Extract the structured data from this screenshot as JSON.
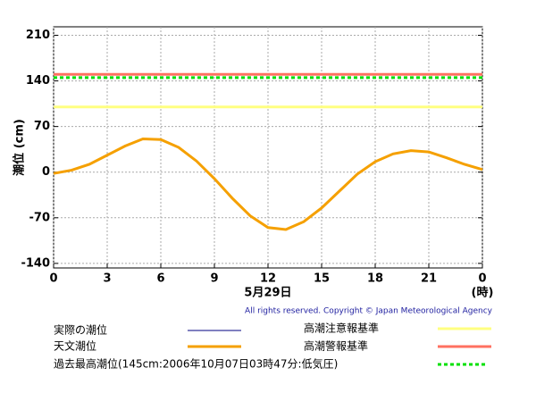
{
  "chart_data": {
    "type": "line",
    "y_label": "潮位 (cm)",
    "x_label": "5月29日",
    "x_unit": "(時)",
    "copyright": "All rights reserved. Copyright © Japan Meteorological Agency",
    "x": [
      0,
      1,
      2,
      3,
      4,
      5,
      6,
      7,
      8,
      9,
      10,
      11,
      12,
      13,
      14,
      15,
      16,
      17,
      18,
      19,
      20,
      21,
      22,
      23,
      24
    ],
    "series": [
      {
        "name": "実際の潮位",
        "color": "#000080",
        "values": [
          null,
          null,
          null,
          null,
          null,
          null,
          null,
          null,
          null,
          null,
          null,
          null,
          null,
          null,
          null,
          null,
          null,
          null,
          null,
          null,
          null,
          null,
          null,
          null,
          null
        ]
      },
      {
        "name": "天文潮位",
        "color": "#f5a000",
        "values": [
          -2,
          3,
          12,
          26,
          40,
          51,
          50,
          38,
          17,
          -10,
          -40,
          -67,
          -85,
          -88,
          -76,
          -55,
          -29,
          -3,
          16,
          28,
          33,
          31,
          22,
          12,
          4
        ]
      }
    ],
    "reference_lines": [
      {
        "name": "高潮注意報基準",
        "value": 100,
        "color": "#ffff80",
        "dash": false
      },
      {
        "name": "高潮警報基準",
        "value": 150,
        "color": "#ff7060",
        "dash": false
      },
      {
        "name": "過去最高潮位(145cm:2006年10月07日03時47分:低気圧)",
        "value": 145,
        "color": "#00e000",
        "dash": true
      }
    ],
    "xlim": [
      0,
      24
    ],
    "xticks": [
      0,
      3,
      6,
      9,
      12,
      15,
      18,
      21,
      {
        "value": 24,
        "label": "0"
      }
    ],
    "ylim": [
      -147,
      223
    ],
    "yticks": [
      -140,
      -70,
      0,
      70,
      140,
      210
    ],
    "grid": true
  }
}
